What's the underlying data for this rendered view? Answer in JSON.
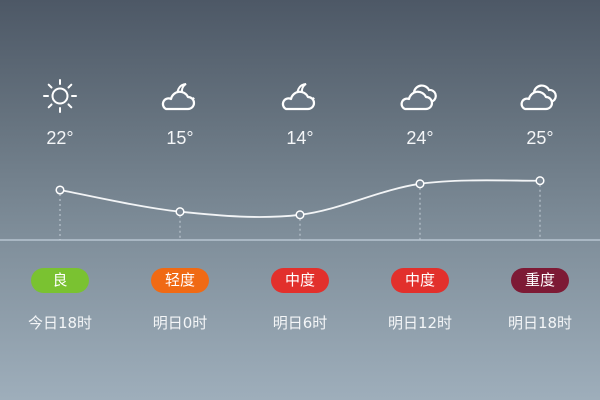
{
  "forecast": [
    {
      "icon": "sun-icon",
      "temp": "22°",
      "temp_value": 22,
      "aqi": "良",
      "aqi_color": "#7ac231",
      "time": "今日18时"
    },
    {
      "icon": "cloud-moon-icon",
      "temp": "15°",
      "temp_value": 15,
      "aqi": "轻度",
      "aqi_color": "#f06a14",
      "time": "明日0时"
    },
    {
      "icon": "cloud-moon-icon",
      "temp": "14°",
      "temp_value": 14,
      "aqi": "中度",
      "aqi_color": "#e2302c",
      "time": "明日6时"
    },
    {
      "icon": "clouds-icon",
      "temp": "24°",
      "temp_value": 24,
      "aqi": "中度",
      "aqi_color": "#e2302c",
      "time": "明日12时"
    },
    {
      "icon": "clouds-icon",
      "temp": "25°",
      "temp_value": 25,
      "aqi": "重度",
      "aqi_color": "#7d1a35",
      "time": "明日18时"
    }
  ],
  "colors": {
    "line": "#f2f4f6",
    "baseline": "#a9b7c3"
  }
}
